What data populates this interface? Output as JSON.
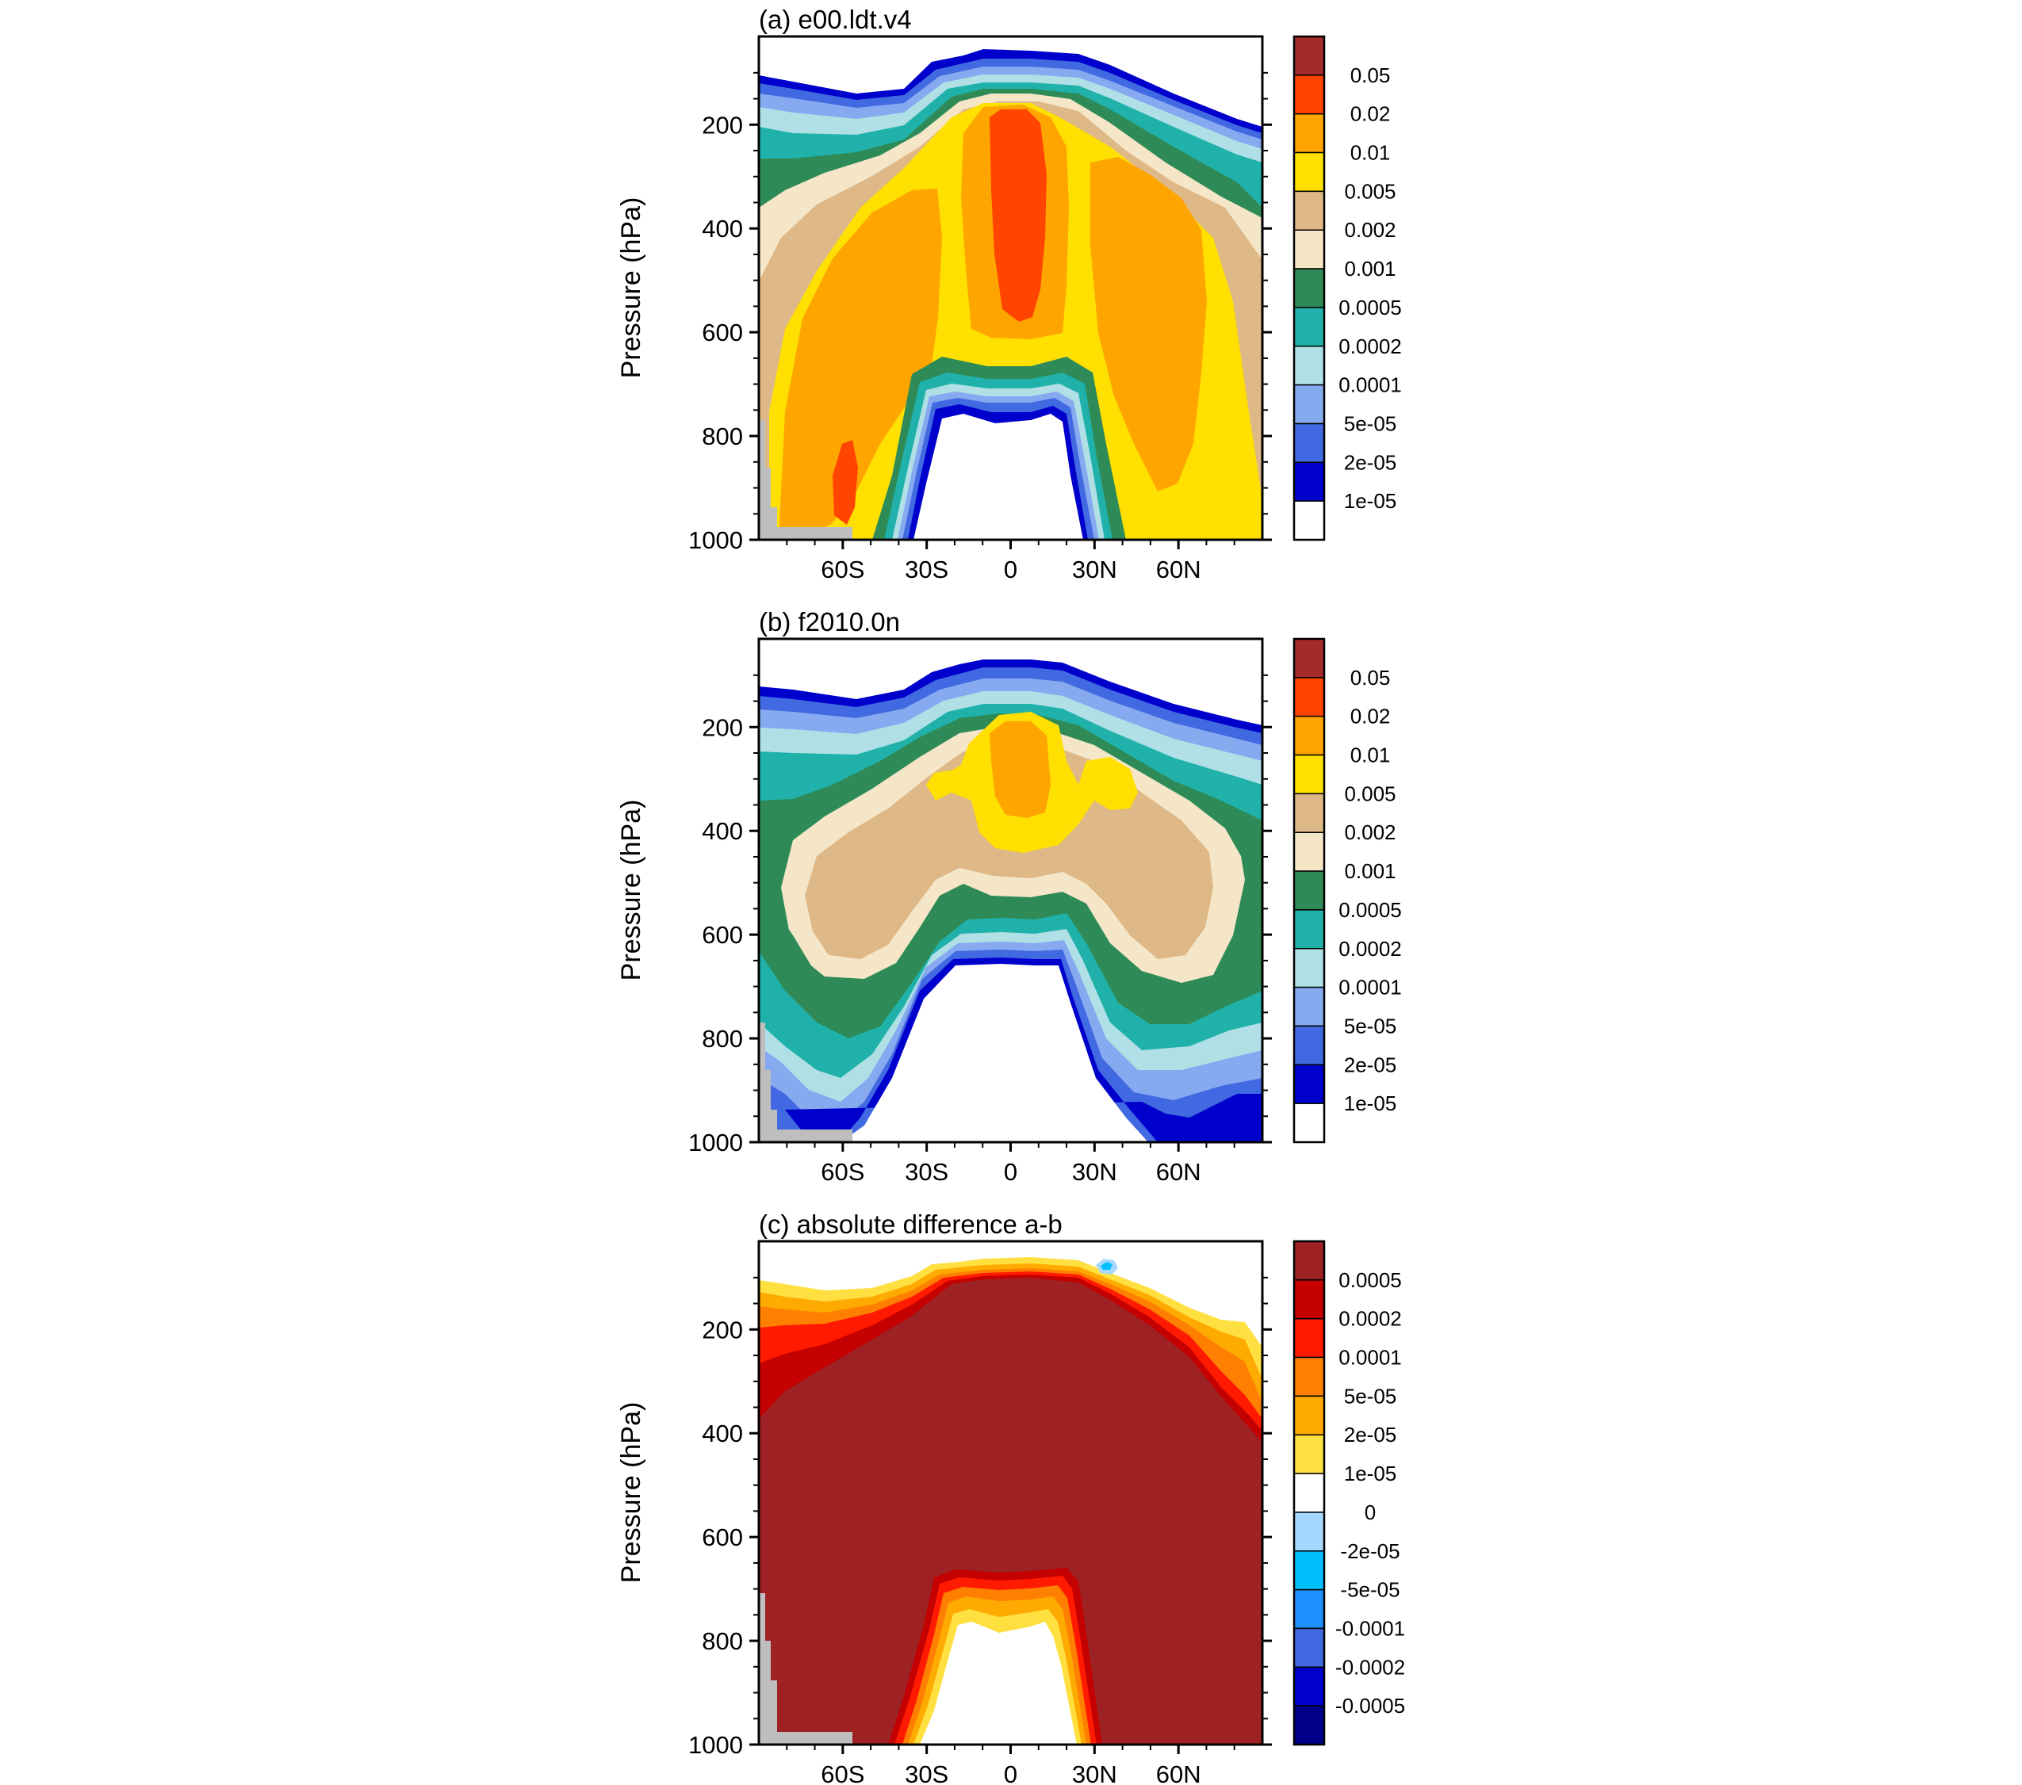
{
  "chart_data": [
    {
      "type": "contour",
      "id": "a",
      "title": "(a) e00.ldt.v4",
      "ylabel": "Pressure (hPa)",
      "xlabel": "",
      "ylim": [
        1000,
        30
      ],
      "yticks": [
        200,
        400,
        600,
        800,
        1000
      ],
      "xlim": [
        -90,
        90
      ],
      "xticks": [
        {
          "value": -60,
          "label": "60S"
        },
        {
          "value": -30,
          "label": "30S"
        },
        {
          "value": 0,
          "label": "0"
        },
        {
          "value": 30,
          "label": "30N"
        },
        {
          "value": 60,
          "label": "60N"
        }
      ],
      "colorbar": {
        "levels": [
          "0.05",
          "0.02",
          "0.01",
          "0.005",
          "0.002",
          "0.001",
          "0.0005",
          "0.0002",
          "0.0001",
          "5e-05",
          "2e-05",
          "1e-05"
        ],
        "colors": [
          "#a52a2a",
          "#ff4500",
          "#ffa500",
          "#ffe000",
          "#deb887",
          "#f5e6c8",
          "#2e8b57",
          "#20b2aa",
          "#b0e0e6",
          "#87a9f0",
          "#4169e1",
          "#0000cd",
          "#ffffff"
        ]
      }
    },
    {
      "type": "contour",
      "id": "b",
      "title": "(b) f2010.0n",
      "ylabel": "Pressure (hPa)",
      "xlabel": "",
      "ylim": [
        1000,
        30
      ],
      "yticks": [
        200,
        400,
        600,
        800,
        1000
      ],
      "xlim": [
        -90,
        90
      ],
      "xticks": [
        {
          "value": -60,
          "label": "60S"
        },
        {
          "value": -30,
          "label": "30S"
        },
        {
          "value": 0,
          "label": "0"
        },
        {
          "value": 30,
          "label": "30N"
        },
        {
          "value": 60,
          "label": "60N"
        }
      ],
      "colorbar": {
        "levels": [
          "0.05",
          "0.02",
          "0.01",
          "0.005",
          "0.002",
          "0.001",
          "0.0005",
          "0.0002",
          "0.0001",
          "5e-05",
          "2e-05",
          "1e-05"
        ],
        "colors": [
          "#a52a2a",
          "#ff4500",
          "#ffa500",
          "#ffe000",
          "#deb887",
          "#f5e6c8",
          "#2e8b57",
          "#20b2aa",
          "#b0e0e6",
          "#87a9f0",
          "#4169e1",
          "#0000cd",
          "#ffffff"
        ]
      }
    },
    {
      "type": "contour",
      "id": "c",
      "title": "(c) absolute difference a-b",
      "ylabel": "Pressure (hPa)",
      "xlabel": "",
      "ylim": [
        1000,
        30
      ],
      "yticks": [
        200,
        400,
        600,
        800,
        1000
      ],
      "xlim": [
        -90,
        90
      ],
      "xticks": [
        {
          "value": -60,
          "label": "60S"
        },
        {
          "value": -30,
          "label": "30S"
        },
        {
          "value": 0,
          "label": "0"
        },
        {
          "value": 30,
          "label": "30N"
        },
        {
          "value": 60,
          "label": "60N"
        }
      ],
      "colorbar": {
        "levels": [
          "0.0005",
          "0.0002",
          "0.0001",
          "5e-05",
          "2e-05",
          "1e-05",
          "0",
          "-2e-05",
          "-5e-05",
          "-0.0001",
          "-0.0002",
          "-0.0005"
        ],
        "colors": [
          "#9e2224",
          "#c40000",
          "#ff1a00",
          "#ff7f00",
          "#ffaa00",
          "#ffe040",
          "#ffffff",
          "#a6d8ff",
          "#00bfff",
          "#1e90ff",
          "#4169e1",
          "#0000cd",
          "#00008b"
        ]
      }
    }
  ]
}
